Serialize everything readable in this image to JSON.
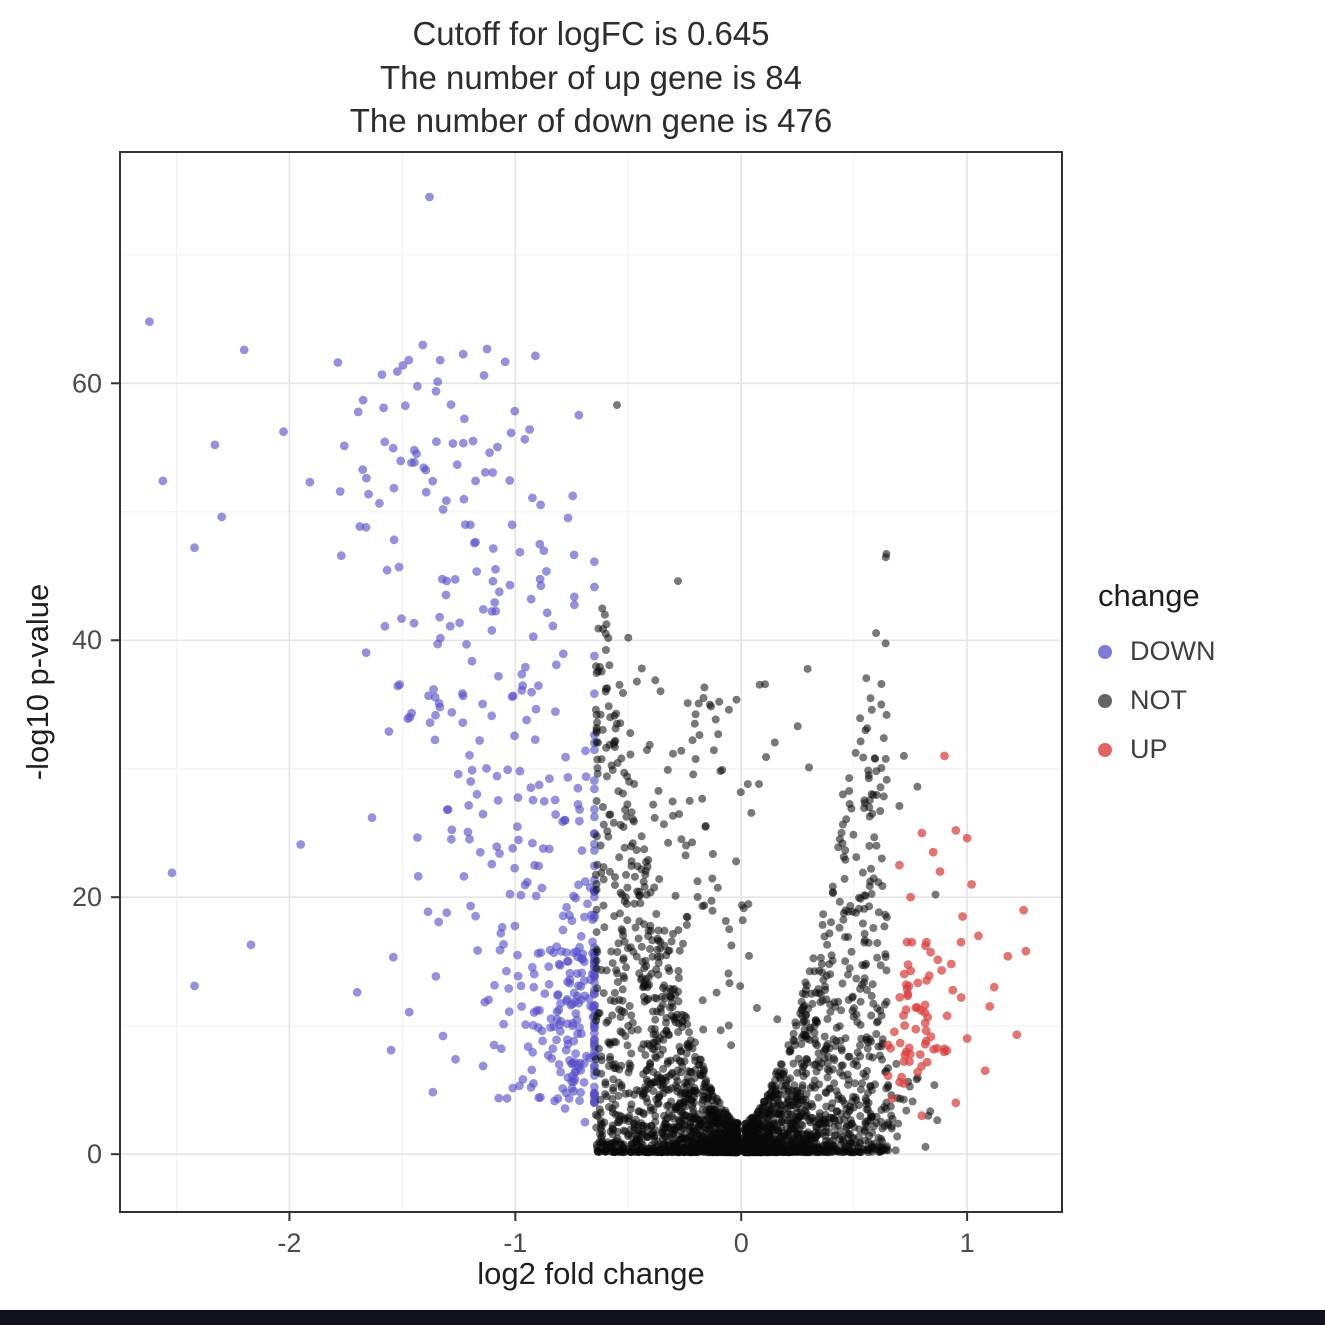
{
  "page": {
    "background": "#ffffff",
    "footer_bar_color": "#10131e"
  },
  "chart_data": {
    "type": "scatter",
    "title_lines": [
      "Cutoff for logFC is 0.645",
      "The number of up gene is 84",
      "The number of down gene is 476"
    ],
    "xlabel": "log2 fold change",
    "ylabel": "-log10 p-value",
    "xlim": [
      -2.75,
      1.42
    ],
    "ylim": [
      -4.5,
      78
    ],
    "x_ticks": [
      -2,
      -1,
      0,
      1
    ],
    "y_ticks": [
      0,
      20,
      40,
      60
    ],
    "x_minor_ticks": [
      -2.5,
      -1.5,
      -0.5,
      0.5
    ],
    "y_minor_ticks": [
      10,
      30,
      50,
      70
    ],
    "grid": true,
    "stats": {
      "cutoff_logFC": 0.645,
      "up_genes": 84,
      "down_genes": 476
    },
    "legend": {
      "title": "change",
      "position": "right",
      "entries": [
        {
          "label": "DOWN",
          "color": "#554dc8",
          "alpha": 0.75
        },
        {
          "label": "NOT",
          "color": "#111111",
          "alpha": 0.65
        },
        {
          "label": "UP",
          "color": "#d93f3b",
          "alpha": 0.8
        }
      ]
    },
    "series_colors": {
      "DOWN": "#554dc8",
      "NOT": "#0a0a0a",
      "UP": "#d93f3b"
    },
    "point_alpha": {
      "DOWN": 0.62,
      "NOT": 0.55,
      "UP": 0.72
    },
    "point_radius": {
      "DOWN": 4.4,
      "NOT": 4.0,
      "UP": 4.4
    },
    "seed": 42,
    "clusters": [
      {
        "series": "DOWN",
        "kind": "band",
        "count": 370,
        "y_min": 4,
        "y_max": 63,
        "y_pow": 1.3,
        "x_base": -0.62,
        "x_slope": -0.0125,
        "x_noise": 0.3,
        "x_min": -2.6,
        "x_max": -0.65
      },
      {
        "series": "DOWN",
        "kind": "blob",
        "count": 92,
        "x_mean": -0.73,
        "x_sd": 0.06,
        "x_min": -1.05,
        "x_max": -0.65,
        "y_mean": 11,
        "y_sd": 4.5,
        "y_min": 2.5,
        "y_max": 24
      },
      {
        "series": "DOWN",
        "kind": "points",
        "points": [
          [
            -1.38,
            74.5
          ],
          [
            -2.62,
            64.8
          ],
          [
            -2.2,
            62.6
          ],
          [
            -2.56,
            52.4
          ],
          [
            -2.33,
            55.2
          ],
          [
            -2.42,
            47.2
          ],
          [
            -2.3,
            49.6
          ],
          [
            -2.52,
            21.9
          ],
          [
            -2.17,
            16.3
          ],
          [
            -1.95,
            24.1
          ],
          [
            -2.42,
            13.1
          ],
          [
            -1.7,
            12.6
          ],
          [
            -1.32,
            9.2
          ],
          [
            -1.55,
            8.1
          ]
        ]
      },
      {
        "series": "NOT",
        "kind": "volcano",
        "count": 2600,
        "x_half": 0.645,
        "x_gap": 0.015,
        "x_pow": 1.4,
        "y_base": 2.2,
        "y_gain": 45,
        "y_gain_pow": 1.7,
        "y_pow": 2.4
      },
      {
        "series": "NOT",
        "kind": "band",
        "count": 150,
        "y_min": 8,
        "y_max": 38,
        "y_pow": 1.15,
        "x_base": -0.22,
        "x_slope": -0.004,
        "x_noise": 0.24,
        "x_min": -0.64,
        "x_max": 0.35
      },
      {
        "series": "NOT",
        "kind": "blob",
        "count": 30,
        "x_mean": 0.72,
        "x_sd": 0.07,
        "x_min": 0.65,
        "x_max": 0.92,
        "y_mean": 3.5,
        "y_sd": 2,
        "y_min": 0.3,
        "y_max": 8
      },
      {
        "series": "NOT",
        "kind": "points",
        "points": [
          [
            -0.55,
            58.3
          ],
          [
            -0.28,
            44.6
          ],
          [
            -0.5,
            40.2
          ],
          [
            -0.44,
            37.8
          ],
          [
            0.25,
            33.3
          ],
          [
            0.3,
            30.1
          ],
          [
            0.72,
            31
          ],
          [
            0.78,
            28.6
          ],
          [
            0.7,
            27.1
          ],
          [
            0.86,
            20.2
          ],
          [
            0.62,
            35
          ],
          [
            0.55,
            33
          ],
          [
            -0.6,
            36
          ],
          [
            -0.58,
            34
          ],
          [
            0.45,
            28
          ]
        ]
      },
      {
        "series": "UP",
        "kind": "blob",
        "count": 60,
        "x_mean": 0.78,
        "x_sd": 0.09,
        "x_min": 0.65,
        "x_max": 1.08,
        "y_mean": 10.5,
        "y_sd": 2.8,
        "y_min": 3,
        "y_max": 16.5
      },
      {
        "series": "UP",
        "kind": "points",
        "points": [
          [
            0.9,
            31
          ],
          [
            0.95,
            25.2
          ],
          [
            1.0,
            24.6
          ],
          [
            0.88,
            22
          ],
          [
            1.02,
            21
          ],
          [
            0.8,
            25
          ],
          [
            0.85,
            23.5
          ],
          [
            1.25,
            19
          ],
          [
            1.18,
            15.4
          ],
          [
            1.12,
            13
          ],
          [
            1.22,
            9.3
          ],
          [
            1.05,
            17
          ],
          [
            0.98,
            18.5
          ],
          [
            0.75,
            20
          ],
          [
            0.7,
            22.5
          ],
          [
            1.08,
            6.5
          ],
          [
            0.95,
            4
          ],
          [
            0.8,
            3
          ],
          [
            0.72,
            5.5
          ],
          [
            1.0,
            9
          ],
          [
            1.1,
            11.5
          ],
          [
            0.93,
            14.8
          ],
          [
            0.9,
            8.2
          ],
          [
            1.26,
            15.8
          ]
        ]
      }
    ]
  }
}
